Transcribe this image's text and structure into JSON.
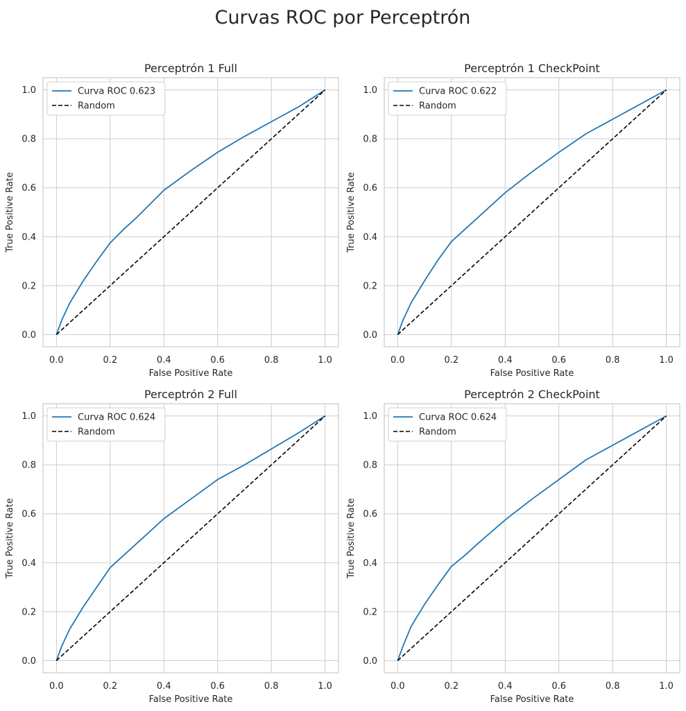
{
  "figure": {
    "title": "Curvas ROC por Perceptrón"
  },
  "colors": {
    "roc": "#1f77b4",
    "random": "#000000",
    "grid": "#cccccc"
  },
  "chart_data": [
    {
      "type": "line",
      "title": "Perceptrón 1 Full",
      "xlabel": "False Positive Rate",
      "ylabel": "True Positive Rate",
      "xlim": [
        -0.05,
        1.05
      ],
      "ylim": [
        -0.05,
        1.05
      ],
      "xticks": [
        0.0,
        0.2,
        0.4,
        0.6,
        0.8,
        1.0
      ],
      "yticks": [
        0.0,
        0.2,
        0.4,
        0.6,
        0.8,
        1.0
      ],
      "tick_labels": [
        "0.0",
        "0.2",
        "0.4",
        "0.6",
        "0.8",
        "1.0"
      ],
      "grid": true,
      "legend": "top-left",
      "series": [
        {
          "name": "Curva ROC 0.623",
          "style": "solid",
          "x": [
            0.0,
            0.02,
            0.05,
            0.1,
            0.15,
            0.2,
            0.25,
            0.3,
            0.4,
            0.5,
            0.6,
            0.7,
            0.8,
            0.9,
            1.0
          ],
          "y": [
            0.0,
            0.06,
            0.13,
            0.22,
            0.3,
            0.375,
            0.43,
            0.48,
            0.59,
            0.67,
            0.745,
            0.81,
            0.87,
            0.93,
            1.0
          ]
        },
        {
          "name": "Random",
          "style": "dashed",
          "x": [
            0.0,
            1.0
          ],
          "y": [
            0.0,
            1.0
          ]
        }
      ]
    },
    {
      "type": "line",
      "title": "Perceptrón 1 CheckPoint",
      "xlabel": "False Positive Rate",
      "ylabel": "True Positive Rate",
      "xlim": [
        -0.05,
        1.05
      ],
      "ylim": [
        -0.05,
        1.05
      ],
      "xticks": [
        0.0,
        0.2,
        0.4,
        0.6,
        0.8,
        1.0
      ],
      "yticks": [
        0.0,
        0.2,
        0.4,
        0.6,
        0.8,
        1.0
      ],
      "tick_labels": [
        "0.0",
        "0.2",
        "0.4",
        "0.6",
        "0.8",
        "1.0"
      ],
      "grid": true,
      "legend": "top-left",
      "series": [
        {
          "name": "Curva ROC 0.622",
          "style": "solid",
          "x": [
            0.0,
            0.02,
            0.05,
            0.1,
            0.15,
            0.2,
            0.25,
            0.3,
            0.4,
            0.5,
            0.6,
            0.7,
            0.8,
            0.9,
            1.0
          ],
          "y": [
            0.0,
            0.06,
            0.13,
            0.22,
            0.305,
            0.38,
            0.43,
            0.48,
            0.58,
            0.665,
            0.745,
            0.82,
            0.88,
            0.94,
            1.0
          ]
        },
        {
          "name": "Random",
          "style": "dashed",
          "x": [
            0.0,
            1.0
          ],
          "y": [
            0.0,
            1.0
          ]
        }
      ]
    },
    {
      "type": "line",
      "title": "Perceptrón 2 Full",
      "xlabel": "False Positive Rate",
      "ylabel": "True Positive Rate",
      "xlim": [
        -0.05,
        1.05
      ],
      "ylim": [
        -0.05,
        1.05
      ],
      "xticks": [
        0.0,
        0.2,
        0.4,
        0.6,
        0.8,
        1.0
      ],
      "yticks": [
        0.0,
        0.2,
        0.4,
        0.6,
        0.8,
        1.0
      ],
      "tick_labels": [
        "0.0",
        "0.2",
        "0.4",
        "0.6",
        "0.8",
        "1.0"
      ],
      "grid": true,
      "legend": "top-left",
      "series": [
        {
          "name": "Curva ROC 0.624",
          "style": "solid",
          "x": [
            0.0,
            0.02,
            0.05,
            0.1,
            0.15,
            0.2,
            0.25,
            0.3,
            0.4,
            0.5,
            0.6,
            0.7,
            0.8,
            0.9,
            1.0
          ],
          "y": [
            0.0,
            0.06,
            0.13,
            0.22,
            0.3,
            0.38,
            0.43,
            0.48,
            0.58,
            0.66,
            0.74,
            0.8,
            0.865,
            0.93,
            1.0
          ]
        },
        {
          "name": "Random",
          "style": "dashed",
          "x": [
            0.0,
            1.0
          ],
          "y": [
            0.0,
            1.0
          ]
        }
      ]
    },
    {
      "type": "line",
      "title": "Perceptrón 2 CheckPoint",
      "xlabel": "False Positive Rate",
      "ylabel": "True Positive Rate",
      "xlim": [
        -0.05,
        1.05
      ],
      "ylim": [
        -0.05,
        1.05
      ],
      "xticks": [
        0.0,
        0.2,
        0.4,
        0.6,
        0.8,
        1.0
      ],
      "yticks": [
        0.0,
        0.2,
        0.4,
        0.6,
        0.8,
        1.0
      ],
      "tick_labels": [
        "0.0",
        "0.2",
        "0.4",
        "0.6",
        "0.8",
        "1.0"
      ],
      "grid": true,
      "legend": "top-left",
      "series": [
        {
          "name": "Curva ROC 0.624",
          "style": "solid",
          "x": [
            0.0,
            0.02,
            0.05,
            0.1,
            0.15,
            0.2,
            0.25,
            0.3,
            0.4,
            0.5,
            0.6,
            0.7,
            0.8,
            0.9,
            1.0
          ],
          "y": [
            0.0,
            0.06,
            0.14,
            0.23,
            0.31,
            0.385,
            0.43,
            0.48,
            0.575,
            0.66,
            0.74,
            0.82,
            0.88,
            0.94,
            1.0
          ]
        },
        {
          "name": "Random",
          "style": "dashed",
          "x": [
            0.0,
            1.0
          ],
          "y": [
            0.0,
            1.0
          ]
        }
      ]
    }
  ]
}
